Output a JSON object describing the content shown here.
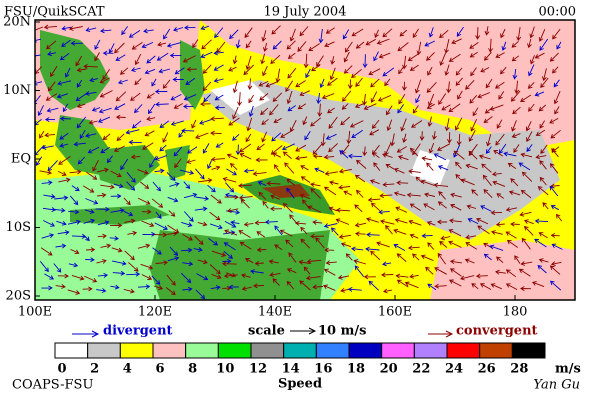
{
  "header": {
    "left": "FSU/QuikSCAT",
    "center": "19 July 2004",
    "right": "00:00"
  },
  "latitude_labels": [
    "20N",
    "10N",
    "EQ",
    "10S",
    "20S"
  ],
  "longitude_labels": [
    "100E",
    "120E",
    "140E",
    "160E",
    "180"
  ],
  "legend": {
    "divergent": "divergent",
    "scale": "scale",
    "scale_value": "10 m/s",
    "convergent": "convergent"
  },
  "colorbar": {
    "colors": [
      "#ffffff",
      "#c8c8c8",
      "#ffff00",
      "#ffc0c0",
      "#98fb98",
      "#00e000",
      "#909090",
      "#00b0b0",
      "#3080ff",
      "#0000c0",
      "#ff60ff",
      "#b080ff",
      "#ff0000",
      "#c04000",
      "#000000"
    ],
    "ticks": [
      0,
      2,
      4,
      6,
      8,
      10,
      12,
      14,
      16,
      18,
      20,
      22,
      24,
      26,
      28
    ],
    "unit": "m/s",
    "title": "Speed"
  },
  "footer": {
    "left": "COAPS-FSU",
    "right": "Yan Gu"
  }
}
